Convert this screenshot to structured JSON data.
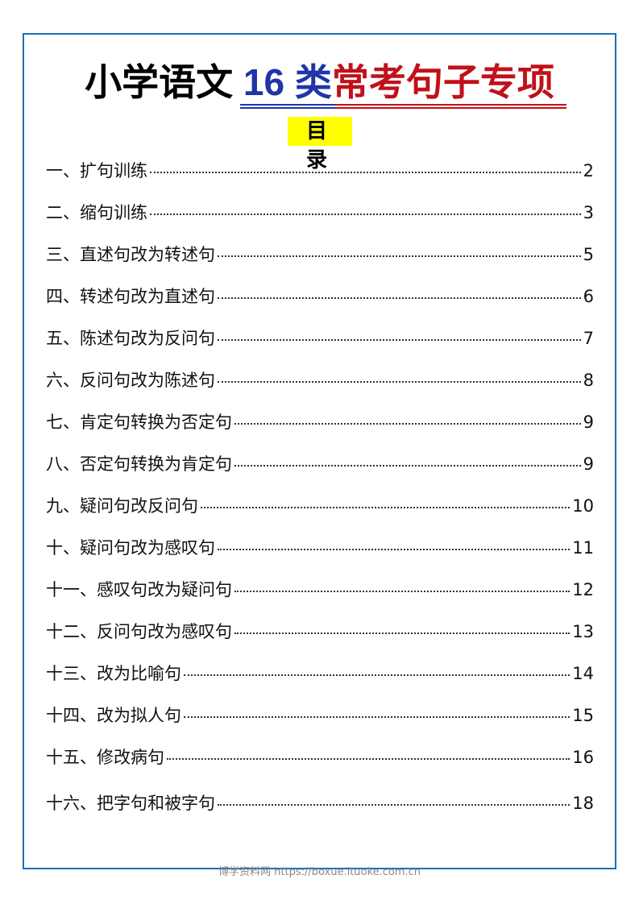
{
  "header": {
    "title_part1": "小学语文",
    "title_part2": "16 类",
    "title_part3": "常考句子专项",
    "subtitle": "目 录",
    "colors": {
      "blue": "#1f35a8",
      "red": "#c0111a",
      "highlight": "#ffff00",
      "frame": "#1f6fb5"
    }
  },
  "toc": [
    {
      "label": "一、扩句训练",
      "page": "2"
    },
    {
      "label": "二、缩句训练",
      "page": "3"
    },
    {
      "label": "三、直述句改为转述句",
      "page": "5"
    },
    {
      "label": "四、转述句改为直述句",
      "page": "6"
    },
    {
      "label": "五、陈述句改为反问句",
      "page": "7"
    },
    {
      "label": "六、反问句改为陈述句",
      "page": "8"
    },
    {
      "label": "七、肯定句转换为否定句",
      "page": "9"
    },
    {
      "label": "八、否定句转换为肯定句",
      "page": "9"
    },
    {
      "label": "九、疑问句改反问句",
      "page": "10"
    },
    {
      "label": "十、疑问句改为感叹句",
      "page": "11"
    },
    {
      "label": "十一、感叹句改为疑问句",
      "page": "12"
    },
    {
      "label": "十二、反问句改为感叹句",
      "page": "13"
    },
    {
      "label": "十三、改为比喻句",
      "page": "14"
    },
    {
      "label": "十四、改为拟人句",
      "page": "15"
    },
    {
      "label": "十五、修改病句",
      "page": "16"
    },
    {
      "label": "十六、把字句和被字句",
      "page": "18"
    }
  ],
  "footer": {
    "watermark": "博学资料网 https://boxue.ituoke.com.cn"
  }
}
